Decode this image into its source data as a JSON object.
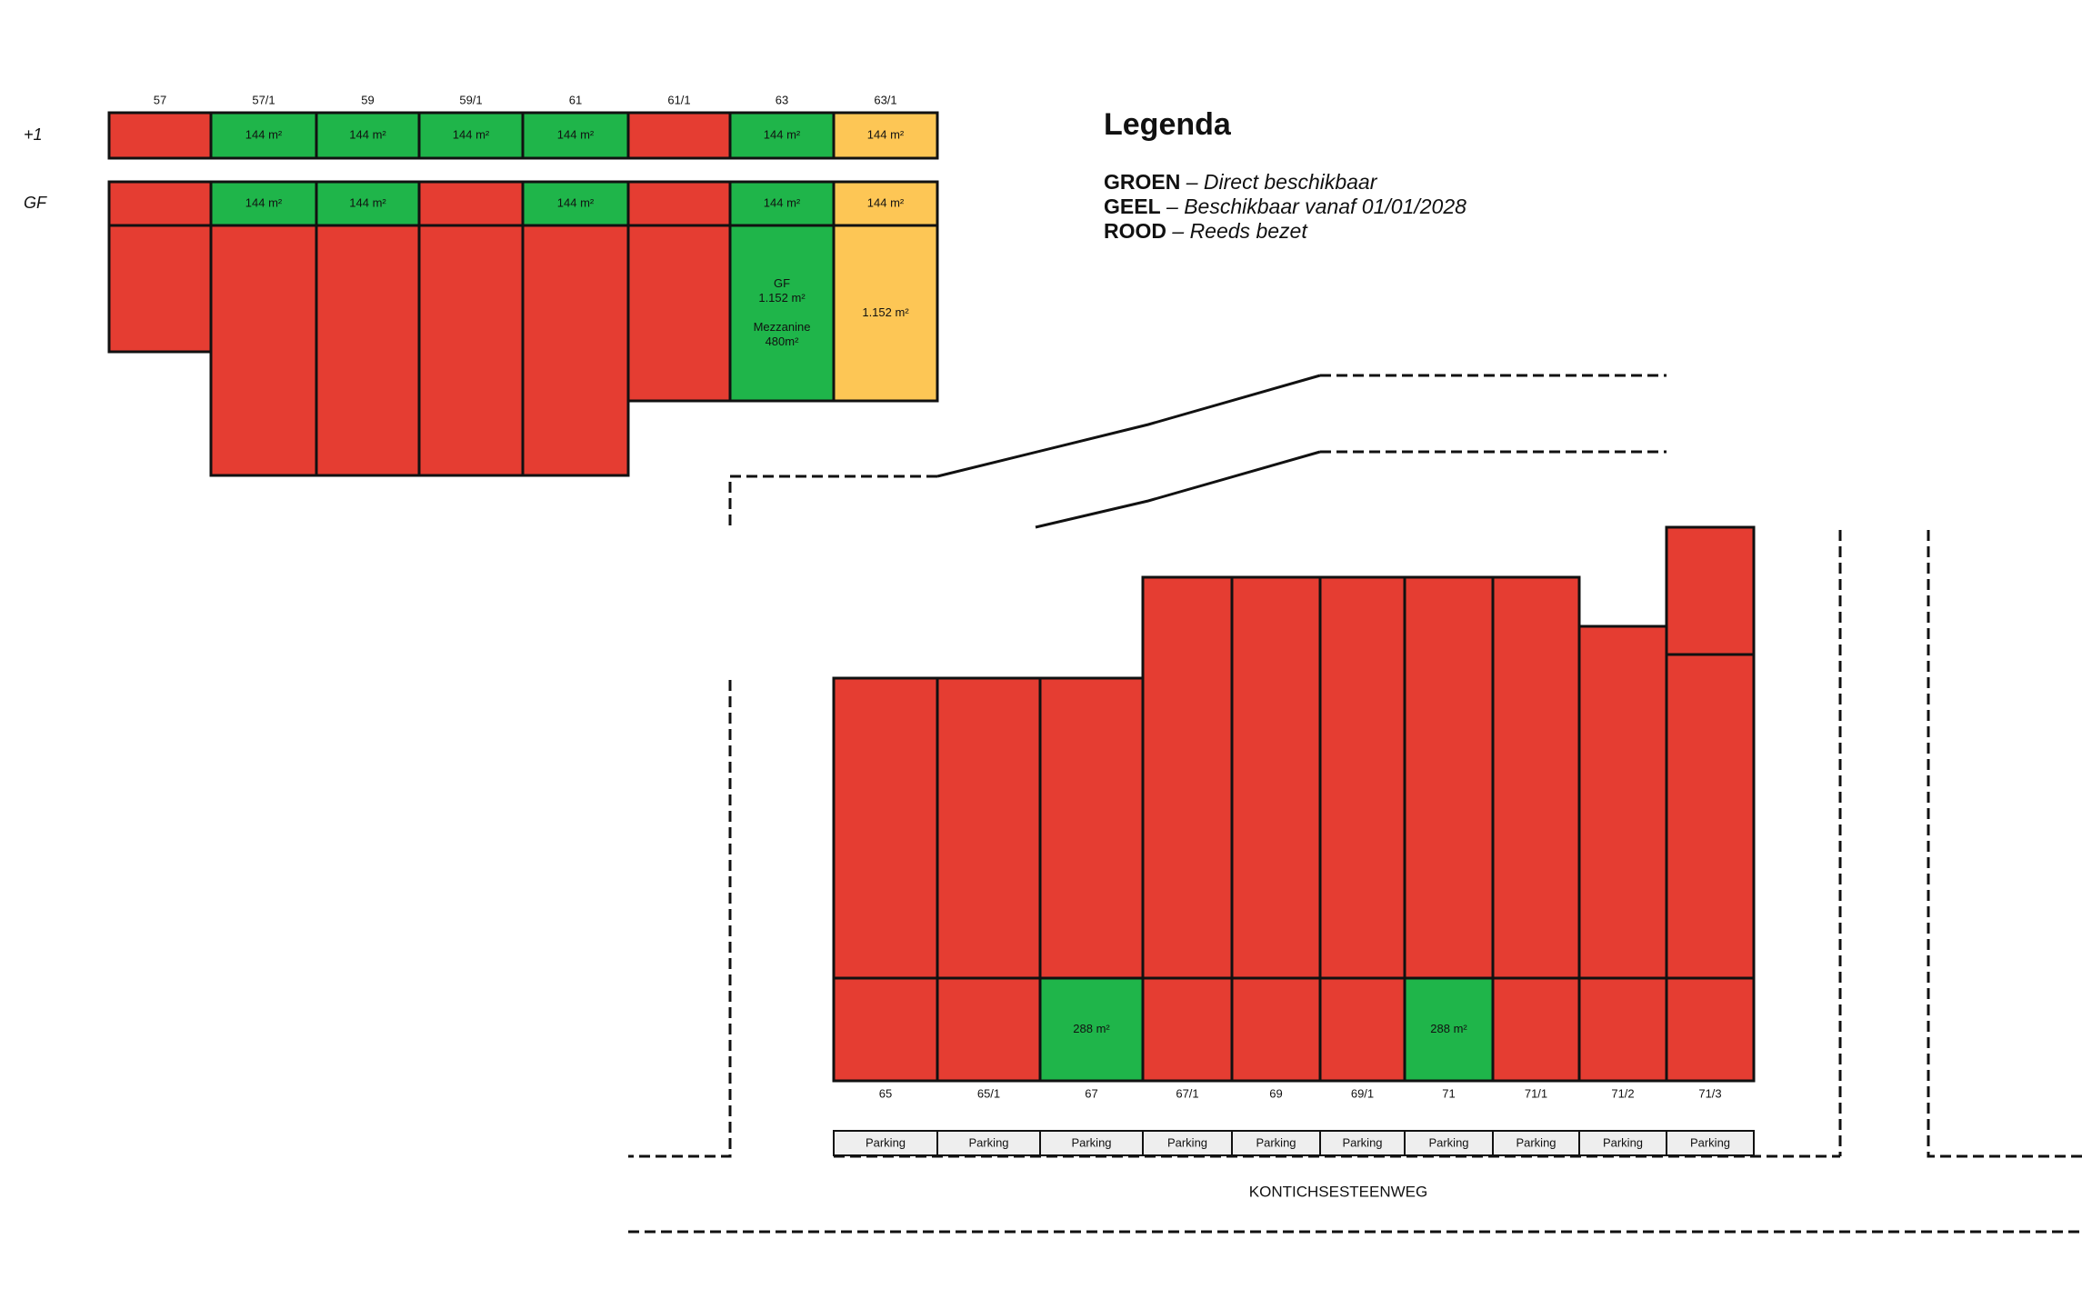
{
  "top_block": {
    "columns": [
      "57",
      "57/1",
      "59",
      "59/1",
      "61",
      "61/1",
      "63",
      "63/1"
    ],
    "floors": [
      {
        "label": "+1",
        "cells": [
          {
            "color": "#e53d32"
          },
          {
            "color": "#1fb54a",
            "text": [
              "144 m²"
            ]
          },
          {
            "color": "#1fb54a",
            "text": [
              "144 m²"
            ]
          },
          {
            "color": "#1fb54a",
            "text": [
              "144 m²"
            ]
          },
          {
            "color": "#1fb54a",
            "text": [
              "144 m²"
            ]
          },
          {
            "color": "#e53d32"
          },
          {
            "color": "#1fb54a",
            "text": [
              "144 m²"
            ]
          },
          {
            "color": "#fdc655",
            "text": [
              "144 m²"
            ]
          }
        ]
      },
      {
        "label": "GF",
        "cells": [
          {
            "color": "#e53d32"
          },
          {
            "color": "#1fb54a",
            "text": [
              "144 m²"
            ]
          },
          {
            "color": "#1fb54a",
            "text": [
              "144 m²"
            ]
          },
          {
            "color": "#e53d32"
          },
          {
            "color": "#1fb54a",
            "text": [
              "144 m²"
            ]
          },
          {
            "color": "#e53d32"
          },
          {
            "color": "#1fb54a",
            "text": [
              "144 m²"
            ]
          },
          {
            "color": "#fdc655",
            "text": [
              "144 m²"
            ]
          }
        ]
      }
    ],
    "lower_cells": [
      {
        "color": "#e53d32"
      },
      {
        "color": "#e53d32"
      },
      {
        "color": "#e53d32"
      },
      {
        "color": "#e53d32"
      },
      {
        "color": "#e53d32"
      },
      {
        "color": "#e53d32"
      },
      {
        "color": "#1fb54a",
        "text": [
          "GF",
          "1.152 m²",
          "Mezzanine",
          "480m²"
        ]
      },
      {
        "color": "#fdc655",
        "text": [
          "1.152 m²"
        ]
      }
    ]
  },
  "legend": {
    "title": "Legenda",
    "items": [
      {
        "key": "GROEN",
        "text": "– Direct beschikbaar",
        "color": "#1fb54a"
      },
      {
        "key": "GEEL",
        "text": "– Beschikbaar vanaf 01/01/2028",
        "color": "#fdc655"
      },
      {
        "key": "ROOD",
        "text": "– Reeds bezet",
        "color": "#e53d32"
      }
    ]
  },
  "bottom_block": {
    "units": [
      "65",
      "65/1",
      "67",
      "67/1",
      "69",
      "69/1",
      "71",
      "71/1",
      "71/2",
      "71/3"
    ],
    "upper_color": "#e53d32",
    "ground_cells": [
      {
        "color": "#e53d32"
      },
      {
        "color": "#e53d32"
      },
      {
        "color": "#1fb54a",
        "text": [
          "288 m²"
        ]
      },
      {
        "color": "#e53d32"
      },
      {
        "color": "#e53d32"
      },
      {
        "color": "#e53d32"
      },
      {
        "color": "#1fb54a",
        "text": [
          "288 m²"
        ]
      },
      {
        "color": "#e53d32"
      },
      {
        "color": "#e53d32"
      },
      {
        "color": "#e53d32"
      }
    ],
    "parking": [
      "Parking",
      "Parking",
      "Parking",
      "Parking",
      "Parking",
      "Parking",
      "Parking",
      "Parking",
      "Parking",
      "Parking"
    ]
  },
  "street": "KONTICHSESTEENWEG"
}
